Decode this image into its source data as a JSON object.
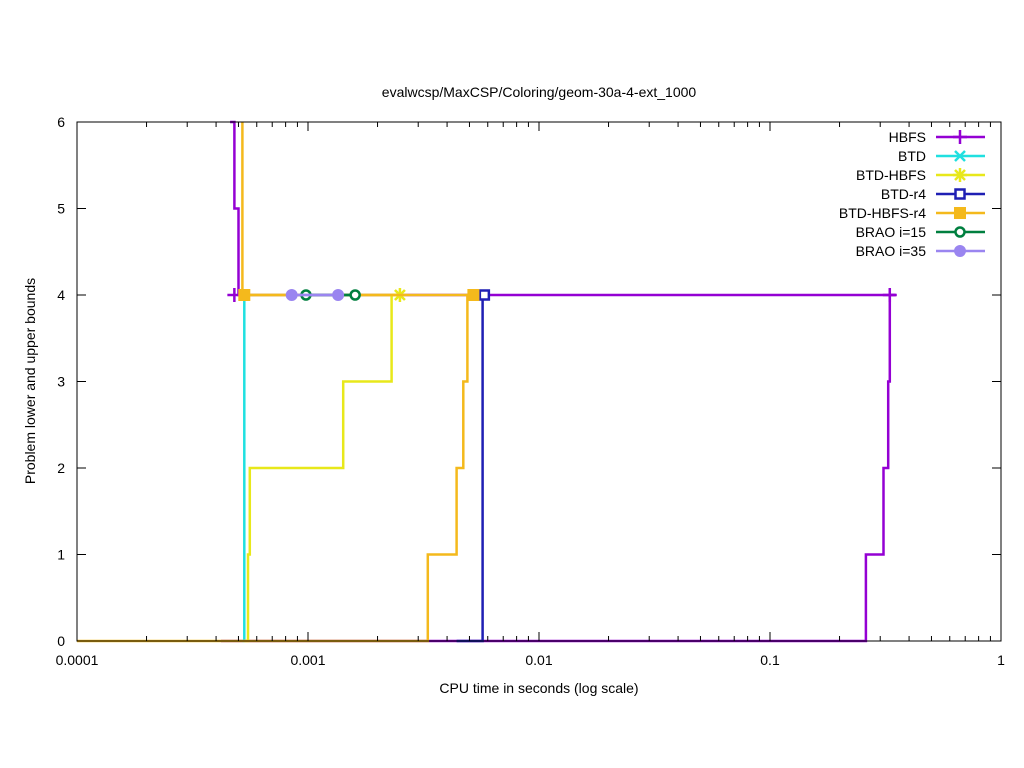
{
  "chart_data": {
    "type": "line",
    "title": "evalwcsp/MaxCSP/Coloring/geom-30a-4-ext_1000",
    "xlabel": "CPU time in seconds (log scale)",
    "ylabel": "Problem lower and upper bounds",
    "xscale": "log",
    "xlim": [
      0.0001,
      1
    ],
    "ylim": [
      0,
      6
    ],
    "xticks": [
      {
        "value": 0.0001,
        "label": "0.0001"
      },
      {
        "value": 0.001,
        "label": "0.001"
      },
      {
        "value": 0.01,
        "label": "0.01"
      },
      {
        "value": 0.1,
        "label": "0.1"
      },
      {
        "value": 1,
        "label": "1"
      }
    ],
    "yticks": [
      {
        "value": 0,
        "label": "0"
      },
      {
        "value": 1,
        "label": "1"
      },
      {
        "value": 2,
        "label": "2"
      },
      {
        "value": 3,
        "label": "3"
      },
      {
        "value": 4,
        "label": "4"
      },
      {
        "value": 5,
        "label": "5"
      },
      {
        "value": 6,
        "label": "6"
      }
    ],
    "legend_position": "top-right",
    "series": [
      {
        "name": "HBFS",
        "color": "#9400d3",
        "marker": "plus",
        "lower": [
          [
            0.00042,
            0
          ],
          [
            0.26,
            0
          ],
          [
            0.26,
            1
          ],
          [
            0.31,
            1
          ],
          [
            0.31,
            2
          ],
          [
            0.325,
            2
          ],
          [
            0.325,
            3
          ],
          [
            0.33,
            3
          ],
          [
            0.33,
            4
          ],
          [
            0.35,
            4
          ]
        ],
        "upper": [
          [
            0.00046,
            6
          ],
          [
            0.00048,
            6
          ],
          [
            0.00048,
            5
          ],
          [
            0.0005,
            5
          ],
          [
            0.0005,
            4
          ],
          [
            0.35,
            4
          ]
        ],
        "markers": [
          [
            0.00048,
            4
          ],
          [
            0.33,
            4
          ]
        ]
      },
      {
        "name": "BTD",
        "color": "#20e0e0",
        "marker": "cross",
        "lower": [
          [
            0.00052,
            0
          ],
          [
            0.00053,
            0
          ],
          [
            0.00053,
            4
          ],
          [
            0.00055,
            4
          ]
        ],
        "upper": [
          [
            0.00053,
            4
          ],
          [
            0.00055,
            4
          ]
        ],
        "markers": [
          [
            0.00053,
            4
          ]
        ]
      },
      {
        "name": "BTD-HBFS",
        "color": "#e8e81a",
        "marker": "star",
        "lower": [
          [
            0.00053,
            0
          ],
          [
            0.00055,
            0
          ],
          [
            0.00055,
            1
          ],
          [
            0.00056,
            1
          ],
          [
            0.00056,
            2
          ],
          [
            0.00142,
            2
          ],
          [
            0.00142,
            3
          ],
          [
            0.0023,
            3
          ],
          [
            0.0023,
            4
          ],
          [
            0.0025,
            4
          ]
        ],
        "upper": [
          [
            0.00053,
            4
          ],
          [
            0.0025,
            4
          ]
        ],
        "markers": [
          [
            0.0025,
            4
          ]
        ]
      },
      {
        "name": "BTD-r4",
        "color": "#1f1fb4",
        "marker": "open-square",
        "lower": [
          [
            0.0044,
            0
          ],
          [
            0.0057,
            0
          ],
          [
            0.0057,
            4
          ],
          [
            0.0058,
            4
          ]
        ],
        "upper": [
          [
            0.0057,
            4
          ],
          [
            0.0058,
            4
          ]
        ],
        "markers": [
          [
            0.0058,
            4
          ]
        ]
      },
      {
        "name": "BTD-HBFS-r4",
        "color": "#f4b91c",
        "marker": "filled-square",
        "lower": [
          [
            0.0001,
            0
          ],
          [
            0.0033,
            0
          ],
          [
            0.0033,
            1
          ],
          [
            0.0044,
            1
          ],
          [
            0.0044,
            2
          ],
          [
            0.0047,
            2
          ],
          [
            0.0047,
            3
          ],
          [
            0.0049,
            3
          ],
          [
            0.0049,
            4
          ],
          [
            0.0052,
            4
          ]
        ],
        "upper": [
          [
            0.00052,
            6
          ],
          [
            0.00052,
            4
          ],
          [
            0.0052,
            4
          ]
        ],
        "markers": [
          [
            0.00053,
            4
          ],
          [
            0.0052,
            4
          ]
        ]
      },
      {
        "name": "BRAO i=15",
        "color": "#007f3f",
        "marker": "open-circle",
        "lower": [
          [
            0.00098,
            4
          ],
          [
            0.0016,
            4
          ]
        ],
        "upper": [
          [
            0.00098,
            4
          ],
          [
            0.0016,
            4
          ]
        ],
        "markers": [
          [
            0.00098,
            4
          ],
          [
            0.0016,
            4
          ]
        ]
      },
      {
        "name": "BRAO i=35",
        "color": "#9a85f0",
        "marker": "filled-circle",
        "lower": [
          [
            0.00085,
            4
          ],
          [
            0.00135,
            4
          ]
        ],
        "upper": [
          [
            0.00085,
            4
          ],
          [
            0.00135,
            4
          ]
        ],
        "markers": [
          [
            0.00085,
            4
          ],
          [
            0.00135,
            4
          ]
        ]
      }
    ]
  }
}
